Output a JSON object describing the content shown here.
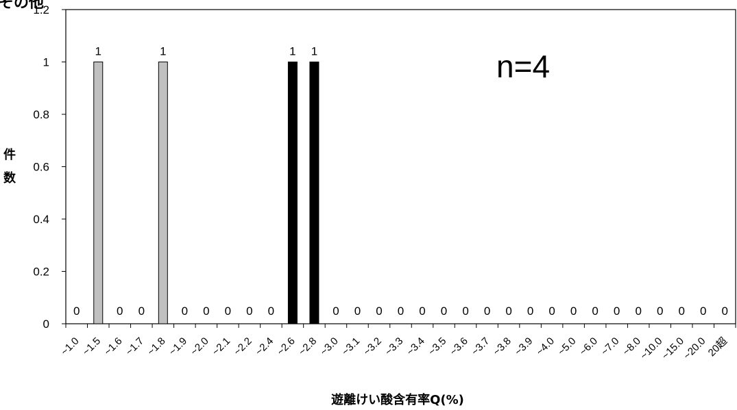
{
  "chart_data": {
    "type": "bar",
    "corner_title": "その他",
    "annotation": "n=4",
    "ylabel": "件数",
    "xlabel": "遊離けい酸含有率Q(%)",
    "ylim": [
      0,
      1.2
    ],
    "yticks": [
      "0",
      "0.2",
      "0.4",
      "0.6",
      "0.8",
      "1",
      "1.2"
    ],
    "categories": [
      "~1.0",
      "~1.5",
      "~1.6",
      "~1.7",
      "~1.8",
      "~1.9",
      "~2.0",
      "~2.1",
      "~2.2",
      "~2.4",
      "~2.6",
      "~2.8",
      "~3.0",
      "~3.1",
      "~3.2",
      "~3.3",
      "~3.4",
      "~3.5",
      "~3.6",
      "~3.7",
      "~3.8",
      "~3.9",
      "~4.0",
      "~5.0",
      "~6.0",
      "~7.0",
      "~8.0",
      "~10.0",
      "~15.0",
      "~20.0",
      "20超"
    ],
    "values": [
      0,
      1,
      0,
      0,
      1,
      0,
      0,
      0,
      0,
      0,
      1,
      1,
      0,
      0,
      0,
      0,
      0,
      0,
      0,
      0,
      0,
      0,
      0,
      0,
      0,
      0,
      0,
      0,
      0,
      0,
      0
    ],
    "bar_labels": [
      "0",
      "1",
      "0",
      "0",
      "1",
      "0",
      "0",
      "0",
      "0",
      "0",
      "1",
      "1",
      "0",
      "0",
      "0",
      "0",
      "0",
      "0",
      "0",
      "0",
      "0",
      "0",
      "0",
      "0",
      "0",
      "0",
      "0",
      "0",
      "0",
      "0",
      "0"
    ],
    "bar_colors": [
      "#c0c0c0",
      "#c0c0c0",
      "#c0c0c0",
      "#c0c0c0",
      "#c0c0c0",
      "#c0c0c0",
      "#c0c0c0",
      "#c0c0c0",
      "#c0c0c0",
      "#c0c0c0",
      "#000000",
      "#000000",
      "#c0c0c0",
      "#c0c0c0",
      "#c0c0c0",
      "#c0c0c0",
      "#c0c0c0",
      "#c0c0c0",
      "#c0c0c0",
      "#c0c0c0",
      "#c0c0c0",
      "#c0c0c0",
      "#c0c0c0",
      "#c0c0c0",
      "#c0c0c0",
      "#c0c0c0",
      "#c0c0c0",
      "#c0c0c0",
      "#c0c0c0",
      "#c0c0c0",
      "#c0c0c0"
    ],
    "grid": false
  }
}
